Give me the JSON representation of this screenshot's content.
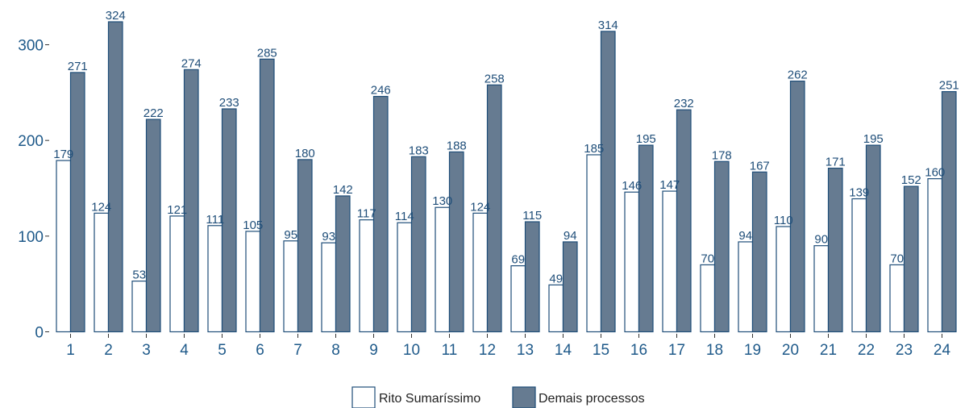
{
  "chart_data": {
    "type": "bar",
    "title": "",
    "xlabel": "",
    "ylabel": "",
    "categories": [
      "1",
      "2",
      "3",
      "4",
      "5",
      "6",
      "7",
      "8",
      "9",
      "10",
      "11",
      "12",
      "13",
      "14",
      "15",
      "16",
      "17",
      "18",
      "19",
      "20",
      "21",
      "22",
      "23",
      "24"
    ],
    "series": [
      {
        "name": "Rito Sumaríssimo",
        "color": "#ffffff",
        "values": [
          179,
          124,
          53,
          121,
          111,
          105,
          95,
          93,
          117,
          114,
          130,
          124,
          69,
          49,
          185,
          146,
          147,
          70,
          94,
          110,
          90,
          139,
          70,
          160
        ]
      },
      {
        "name": "Demais processos",
        "color": "#667b91",
        "values": [
          271,
          324,
          222,
          274,
          233,
          285,
          180,
          142,
          246,
          183,
          188,
          258,
          115,
          94,
          314,
          195,
          232,
          178,
          167,
          262,
          171,
          195,
          152,
          251
        ]
      }
    ],
    "yticks": [
      0,
      100,
      200,
      300
    ],
    "ylim": [
      0,
      330
    ],
    "legend_position": "bottom",
    "grid": false,
    "colors": {
      "border": "#1f4e79",
      "text": "#1f5a8a"
    }
  }
}
